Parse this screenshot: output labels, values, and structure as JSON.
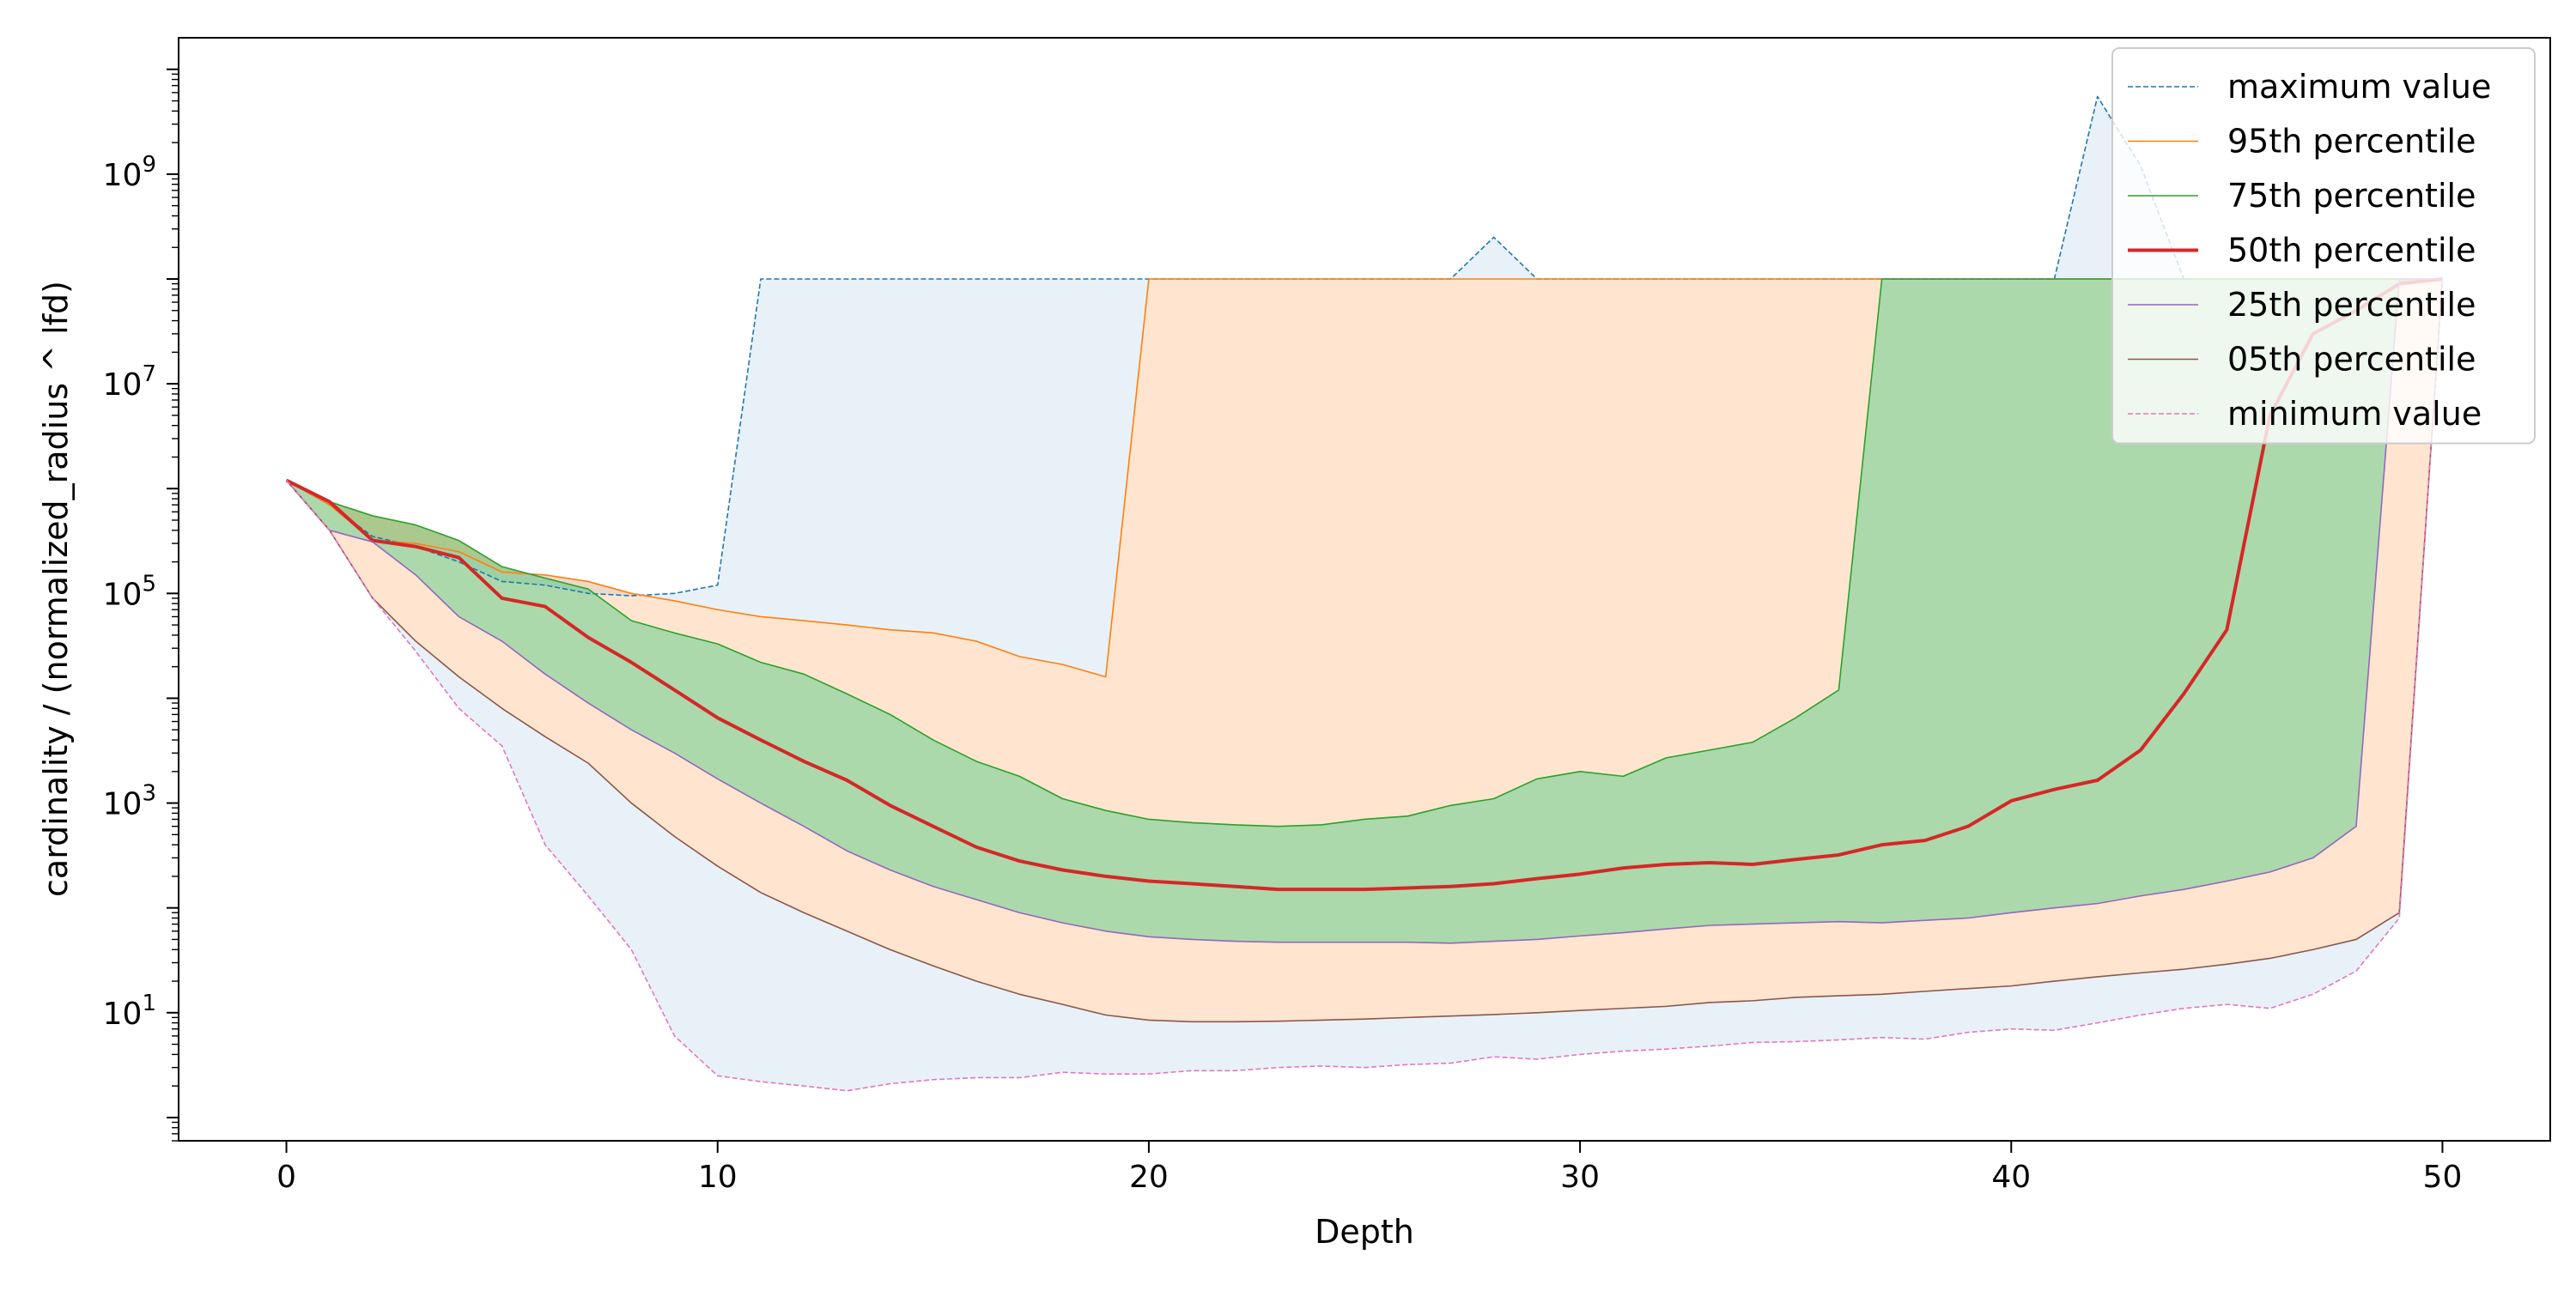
{
  "chart_data": {
    "type": "area",
    "xlabel": "Depth",
    "ylabel": "cardinality / (normalized_radius ^ lfd)",
    "yscale": "log",
    "xlim": [
      -2.5,
      52.5
    ],
    "ylim": [
      0.6,
      20000000000
    ],
    "xticks": [
      0,
      10,
      20,
      30,
      40,
      50
    ],
    "xtick_labels": [
      "0",
      "10",
      "20",
      "30",
      "40",
      "50"
    ],
    "yticks": [
      10,
      1000,
      100000,
      10000000,
      1000000000
    ],
    "ytick_labels": [
      {
        "base": "10",
        "exp": "1"
      },
      {
        "base": "10",
        "exp": "3"
      },
      {
        "base": "10",
        "exp": "5"
      },
      {
        "base": "10",
        "exp": "7"
      },
      {
        "base": "10",
        "exp": "9"
      }
    ],
    "grid": false,
    "legend_position": "top-right",
    "x": [
      0,
      1,
      2,
      3,
      4,
      5,
      6,
      7,
      8,
      9,
      10,
      11,
      12,
      13,
      14,
      15,
      16,
      17,
      18,
      19,
      20,
      21,
      22,
      23,
      24,
      25,
      26,
      27,
      28,
      29,
      30,
      31,
      32,
      33,
      34,
      35,
      36,
      37,
      38,
      39,
      40,
      41,
      42,
      43,
      44,
      45,
      46,
      47,
      48,
      49,
      50
    ],
    "series": [
      {
        "name": "maximum value",
        "color": "#1f77b4",
        "dash": true,
        "values": [
          1200000,
          700000,
          350000,
          280000,
          200000,
          130000,
          120000,
          100000,
          95000,
          100000,
          120000,
          100000000,
          100000000,
          100000000,
          100000000,
          100000000,
          100000000,
          100000000,
          100000000,
          100000000,
          100000000,
          100000000,
          100000000,
          100000000,
          100000000,
          100000000,
          100000000,
          100000000,
          250000000,
          100000000,
          100000000,
          100000000,
          100000000,
          100000000,
          100000000,
          100000000,
          100000000,
          100000000,
          100000000,
          100000000,
          100000000,
          100000000,
          5500000000,
          1200000000,
          100000000,
          100000000,
          100000000,
          100000000,
          100000000,
          100000000,
          100000000
        ]
      },
      {
        "name": "95th percentile",
        "color": "#ff7f0e",
        "dash": false,
        "values": [
          1200000,
          700000,
          320000,
          300000,
          250000,
          160000,
          150000,
          130000,
          100000,
          85000,
          70000,
          60000,
          55000,
          50000,
          45000,
          42000,
          35000,
          25000,
          21000,
          16000,
          100000000,
          100000000,
          100000000,
          100000000,
          100000000,
          100000000,
          100000000,
          100000000,
          100000000,
          100000000,
          100000000,
          100000000,
          100000000,
          100000000,
          100000000,
          100000000,
          100000000,
          100000000,
          100000000,
          100000000,
          100000000,
          100000000,
          100000000,
          100000000,
          100000000,
          100000000,
          100000000,
          100000000,
          100000000,
          100000000,
          100000000
        ]
      },
      {
        "name": "75th percentile",
        "color": "#2ca02c",
        "dash": false,
        "values": [
          1200000,
          750000,
          550000,
          450000,
          320000,
          180000,
          140000,
          110000,
          55000,
          42000,
          33000,
          22000,
          17000,
          11000,
          7000,
          4000,
          2500,
          1800,
          1100,
          850,
          700,
          650,
          620,
          600,
          620,
          700,
          750,
          950,
          1100,
          1700,
          2000,
          1800,
          2700,
          3200,
          3800,
          6500,
          12000,
          100000000,
          100000000,
          100000000,
          100000000,
          100000000,
          100000000,
          100000000,
          100000000,
          100000000,
          100000000,
          100000000,
          100000000,
          100000000,
          100000000
        ]
      },
      {
        "name": "50th percentile",
        "color": "#d62728",
        "dash": false,
        "values": [
          1200000,
          750000,
          320000,
          280000,
          220000,
          90000,
          75000,
          38000,
          22000,
          12000,
          6500,
          4000,
          2500,
          1650,
          950,
          600,
          380,
          280,
          230,
          200,
          180,
          170,
          160,
          150,
          150,
          150,
          155,
          160,
          170,
          190,
          210,
          240,
          260,
          270,
          260,
          290,
          320,
          400,
          440,
          600,
          1050,
          1350,
          1650,
          3200,
          11000,
          45000,
          5000000,
          30000000,
          50000000,
          90000000,
          100000000
        ]
      },
      {
        "name": "25th percentile",
        "color": "#9467bd",
        "dash": false,
        "values": [
          1200000,
          400000,
          310000,
          150000,
          60000,
          35000,
          17000,
          9000,
          5000,
          3000,
          1700,
          1000,
          600,
          350,
          230,
          160,
          120,
          90,
          72,
          60,
          53,
          50,
          48,
          47,
          47,
          47,
          47,
          46,
          48,
          50,
          54,
          58,
          63,
          68,
          70,
          72,
          74,
          72,
          76,
          80,
          90,
          100,
          110,
          130,
          150,
          180,
          220,
          300,
          600,
          100000000,
          100000000
        ]
      },
      {
        "name": "05th percentile",
        "color": "#8c564b",
        "dash": false,
        "values": [
          1200000,
          400000,
          90000,
          35000,
          16000,
          8000,
          4300,
          2400,
          1000,
          480,
          250,
          140,
          90,
          60,
          40,
          28,
          20,
          15,
          12,
          9.5,
          8.5,
          8.2,
          8.2,
          8.3,
          8.5,
          8.7,
          9,
          9.3,
          9.6,
          10,
          10.5,
          11,
          11.5,
          12.5,
          13,
          14,
          14.5,
          15,
          16,
          17,
          18,
          20,
          22,
          24,
          26,
          29,
          33,
          40,
          50,
          90,
          100000000
        ]
      },
      {
        "name": "minimum value",
        "color": "#e377c2",
        "dash": true,
        "values": [
          1200000,
          400000,
          90000,
          28000,
          8000,
          3500,
          400,
          130,
          40,
          6,
          2.5,
          2.2,
          2,
          1.8,
          2.1,
          2.3,
          2.4,
          2.4,
          2.7,
          2.6,
          2.6,
          2.8,
          2.8,
          3,
          3.1,
          3,
          3.2,
          3.3,
          3.8,
          3.6,
          4,
          4.3,
          4.5,
          4.8,
          5.2,
          5.3,
          5.5,
          5.8,
          5.6,
          6.5,
          7,
          6.8,
          8,
          9.5,
          11,
          12,
          11,
          15,
          25,
          80,
          100000000
        ]
      }
    ]
  }
}
